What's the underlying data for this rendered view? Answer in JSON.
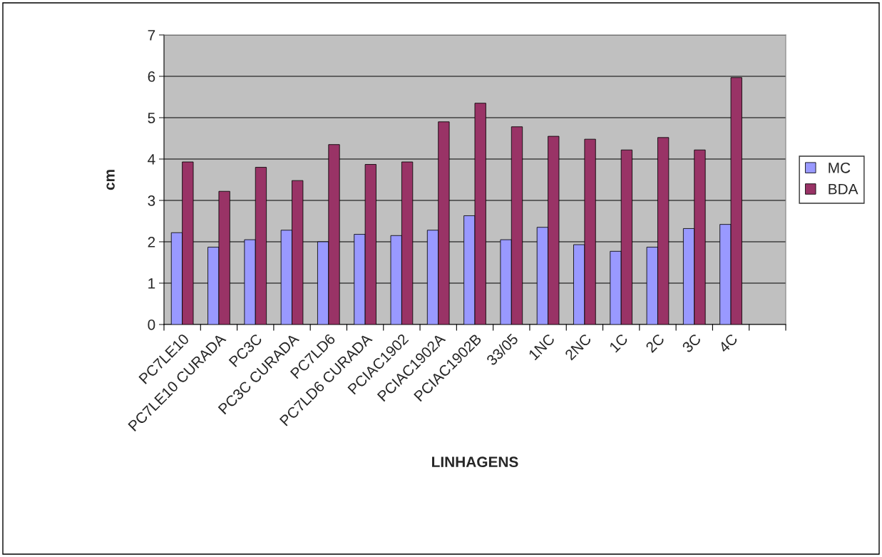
{
  "chart_data": {
    "type": "bar",
    "xlabel": "LINHAGENS",
    "ylabel": "cm",
    "categories": [
      "PC7LE10",
      "PC7LE10 CURADA",
      "PC3C",
      "PC3C CURADA",
      "PC7LD6",
      "PC7LD6 CURADA",
      "PCIAC1902",
      "PCIAC1902A",
      "PCIAC1902B",
      "33/05",
      "1NC",
      "2NC",
      "1C",
      "2C",
      "3C",
      "4C",
      null
    ],
    "series": [
      {
        "name": "MC",
        "color": "#9999ff",
        "values": [
          2.22,
          1.87,
          2.05,
          2.28,
          2.0,
          2.18,
          2.15,
          2.28,
          2.63,
          2.05,
          2.35,
          1.93,
          1.77,
          1.87,
          2.32,
          2.42,
          null
        ]
      },
      {
        "name": "BDA",
        "color": "#993366",
        "values": [
          3.93,
          3.22,
          3.8,
          3.48,
          4.35,
          3.87,
          3.93,
          4.9,
          5.35,
          4.78,
          4.55,
          4.48,
          4.22,
          4.52,
          4.22,
          5.97,
          null
        ]
      }
    ],
    "ylim": [
      0,
      7
    ],
    "yticks": [
      0,
      1,
      2,
      3,
      4,
      5,
      6,
      7
    ],
    "grid": "y",
    "legend": "right"
  }
}
